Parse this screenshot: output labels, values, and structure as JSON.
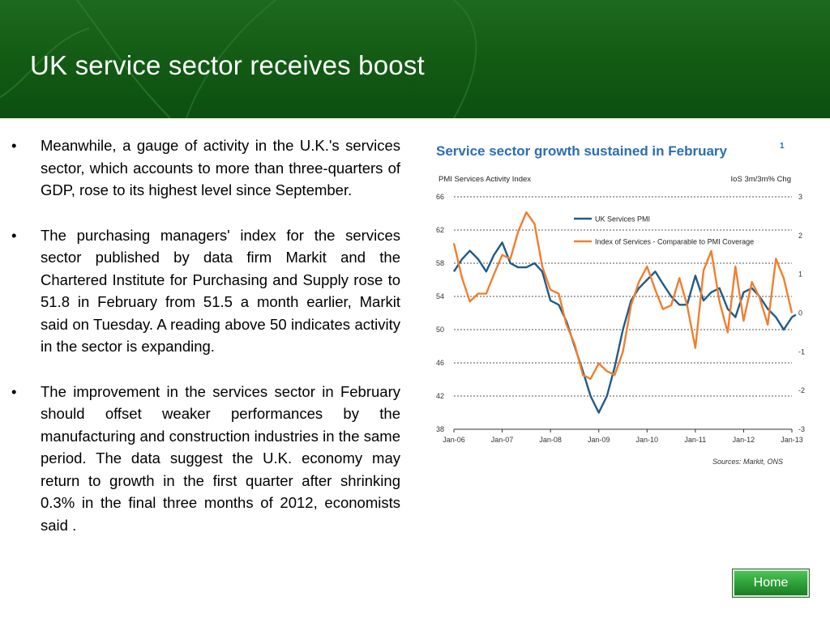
{
  "slide": {
    "title": "UK service sector receives boost",
    "bullets": [
      "Meanwhile, a gauge of activity in the U.K.'s services sector, which accounts to more than three-quarters of GDP, rose to its highest level since September.",
      "The purchasing managers' index for the services sector published by data firm Markit and the Chartered Institute for Purchasing and Supply rose to 51.8 in February from 51.5 a month earlier, Markit said on Tuesday. A reading above 50 indicates activity in the sector is expanding.",
      "The improvement in the services sector in February should offset weaker performances by the manufacturing and construction industries in the same period. The data suggest the U.K. economy may return to growth in the first quarter after shrinking 0.3% in the final three months of 2012, economists said ."
    ],
    "bullet_char": "•",
    "home_label": "Home"
  },
  "chart_data": {
    "type": "line",
    "title": "Service sector growth sustained in February",
    "title_superscript": "1",
    "ylabel_left": "PMI Services Activity Index",
    "ylabel_right": "IoS 3m/3m% Chg",
    "source": "Sources: Markit, ONS",
    "x_ticks": [
      "Jan-06",
      "Jan-07",
      "Jan-08",
      "Jan-09",
      "Jan-10",
      "Jan-11",
      "Jan-12",
      "Jan-13"
    ],
    "left_axis": {
      "min": 38,
      "max": 66,
      "ticks": [
        38,
        42,
        46,
        50,
        54,
        58,
        62,
        66
      ]
    },
    "right_axis": {
      "min": -3,
      "max": 3,
      "ticks": [
        -3,
        -2,
        -1,
        0,
        1,
        2,
        3
      ]
    },
    "grid": "dotted horizontal",
    "legend_position": "top-center",
    "colors": {
      "uk_pmi": "#1f5b8a",
      "ios": "#f07f2e",
      "title": "#2a6db5"
    },
    "series": [
      {
        "name": "UK Services PMI",
        "axis": "left",
        "x": [
          2006.0,
          2006.17,
          2006.33,
          2006.5,
          2006.67,
          2006.83,
          2007.0,
          2007.17,
          2007.33,
          2007.5,
          2007.67,
          2007.83,
          2008.0,
          2008.17,
          2008.33,
          2008.5,
          2008.67,
          2008.83,
          2009.0,
          2009.17,
          2009.33,
          2009.5,
          2009.67,
          2009.83,
          2010.0,
          2010.17,
          2010.33,
          2010.5,
          2010.67,
          2010.83,
          2011.0,
          2011.17,
          2011.33,
          2011.5,
          2011.67,
          2011.83,
          2012.0,
          2012.17,
          2012.33,
          2012.5,
          2012.67,
          2012.83,
          2013.0,
          2013.08
        ],
        "values": [
          57,
          58.5,
          59.5,
          58.5,
          57,
          59,
          60.5,
          58,
          57.5,
          57.5,
          58,
          57,
          53.5,
          53,
          51,
          48,
          45,
          42,
          40,
          42,
          45.5,
          50,
          53.5,
          55,
          56,
          57,
          55.5,
          54,
          53,
          53,
          56.5,
          53.5,
          54.5,
          55,
          52.5,
          51.5,
          54.5,
          55,
          54,
          52.5,
          51.5,
          50,
          51.5,
          51.8
        ]
      },
      {
        "name": "Index of Services - Comparable to PMI Coverage",
        "axis": "right",
        "x": [
          2006.0,
          2006.17,
          2006.33,
          2006.5,
          2006.67,
          2006.83,
          2007.0,
          2007.17,
          2007.33,
          2007.5,
          2007.67,
          2007.83,
          2008.0,
          2008.17,
          2008.33,
          2008.5,
          2008.67,
          2008.83,
          2009.0,
          2009.17,
          2009.33,
          2009.5,
          2009.67,
          2009.83,
          2010.0,
          2010.17,
          2010.33,
          2010.5,
          2010.67,
          2010.83,
          2011.0,
          2011.17,
          2011.33,
          2011.5,
          2011.67,
          2011.83,
          2012.0,
          2012.17,
          2012.33,
          2012.5,
          2012.67,
          2012.83,
          2013.0
        ],
        "values": [
          1.8,
          0.9,
          0.3,
          0.5,
          0.5,
          1.0,
          1.5,
          1.4,
          2.1,
          2.6,
          2.3,
          1.2,
          0.6,
          0.5,
          -0.3,
          -0.8,
          -1.6,
          -1.7,
          -1.3,
          -1.5,
          -1.6,
          -1.0,
          0.2,
          0.8,
          1.2,
          0.6,
          0.1,
          0.2,
          0.9,
          0.2,
          -0.9,
          1.1,
          1.6,
          0.3,
          -0.5,
          1.2,
          -0.2,
          0.8,
          0.4,
          -0.3,
          1.4,
          0.9,
          0.0
        ]
      }
    ]
  }
}
